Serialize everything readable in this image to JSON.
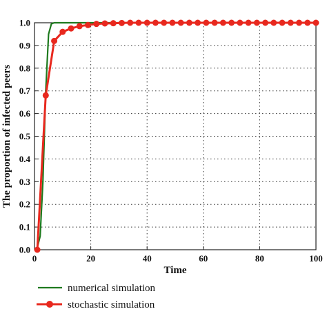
{
  "chart_data": {
    "type": "line",
    "xlabel": "Time",
    "ylabel": "The proportion of infected peers",
    "xlim": [
      0,
      100
    ],
    "ylim": [
      0,
      1.0
    ],
    "x_ticks": [
      "0",
      "20",
      "40",
      "60",
      "80",
      "100"
    ],
    "y_ticks": [
      "0.0",
      "0.1",
      "0.2",
      "0.3",
      "0.4",
      "0.5",
      "0.6",
      "0.7",
      "0.8",
      "0.9",
      "1.0"
    ],
    "grid": true,
    "legend_position": "bottom",
    "series": [
      {
        "name": "numerical simulation",
        "color": "#1e7a1e",
        "marker": "none",
        "x": [
          0,
          1,
          2,
          3,
          4,
          5,
          6,
          7,
          8,
          10,
          15,
          20,
          30,
          40,
          50,
          60,
          70,
          80,
          90,
          100
        ],
        "y": [
          0.0,
          0.01,
          0.06,
          0.3,
          0.7,
          0.95,
          0.995,
          1.0,
          1.0,
          1.0,
          1.0,
          1.0,
          1.0,
          1.0,
          1.0,
          1.0,
          1.0,
          1.0,
          1.0,
          1.0
        ]
      },
      {
        "name": "stochastic simulation",
        "color": "#e8281e",
        "marker": "circle",
        "x": [
          1,
          4,
          7,
          10,
          13,
          16,
          19,
          22,
          25,
          28,
          31,
          34,
          37,
          40,
          43,
          46,
          49,
          52,
          55,
          58,
          61,
          64,
          67,
          70,
          73,
          76,
          79,
          82,
          85,
          88,
          91,
          94,
          97,
          100
        ],
        "y": [
          0.0,
          0.68,
          0.92,
          0.96,
          0.975,
          0.985,
          0.99,
          0.995,
          0.997,
          0.998,
          0.999,
          1.0,
          1.0,
          1.0,
          1.0,
          1.0,
          1.0,
          1.0,
          1.0,
          1.0,
          1.0,
          1.0,
          1.0,
          1.0,
          1.0,
          1.0,
          1.0,
          1.0,
          1.0,
          1.0,
          1.0,
          1.0,
          1.0,
          1.0
        ]
      }
    ]
  }
}
